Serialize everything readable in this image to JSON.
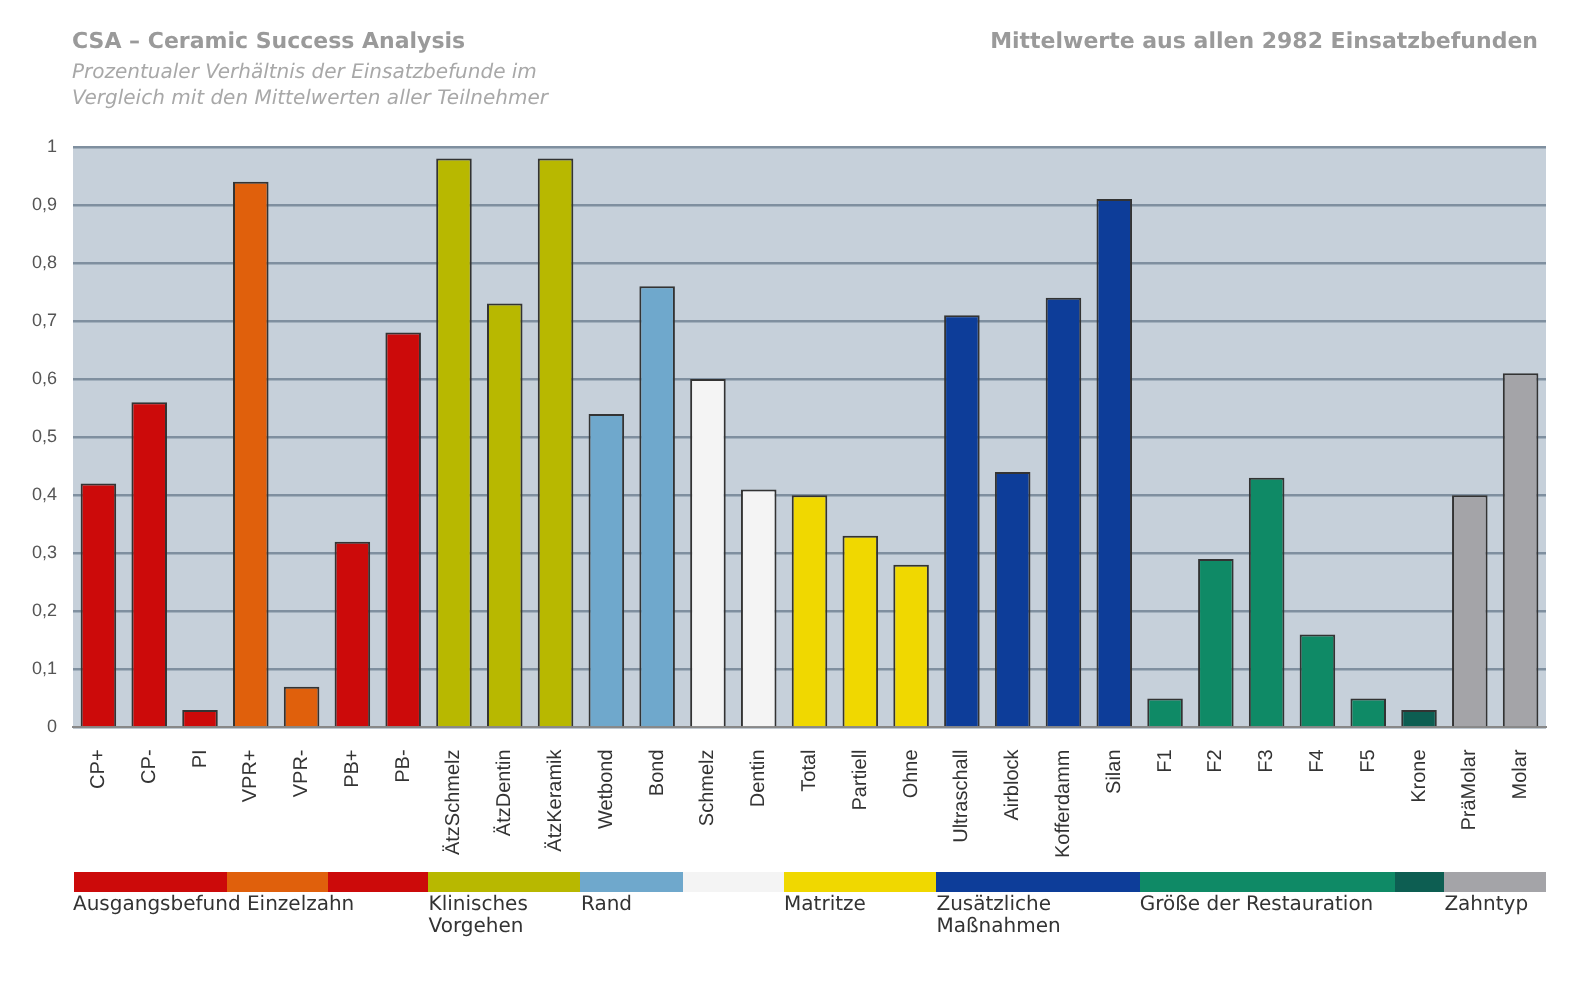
{
  "chart_data": {
    "type": "bar",
    "title": "CSA – Ceramic Success Analysis",
    "subtitle": "Prozentualer Verhältnis der Einsatzbefunde im Vergleich mit den Mittelwerten aller Teilnehmer",
    "annotations": [
      "Mittelwerte aus allen 2982 Einsatzbefunden"
    ],
    "categories": [
      "CP+",
      "CP-",
      "PI",
      "VPR+",
      "VPR-",
      "PB+",
      "PB-",
      "ÄtzSchmelz",
      "ÄtzDentin",
      "ÄtzKeramik",
      "Wetbond",
      "Bond",
      "Schmelz",
      "Dentin",
      "Total",
      "Partiell",
      "Ohne",
      "Ultraschall",
      "Airblock",
      "Kofferdamm",
      "Silan",
      "F1",
      "F2",
      "F3",
      "F4",
      "F5",
      "Krone",
      "PräMolar",
      "Molar"
    ],
    "series": [
      {
        "name": "Ausgangsbefund Einzelzahn",
        "colors": [
          "#cc0a0a",
          "#cc0a0a",
          "#cc0a0a",
          "#e0600c",
          "#e0600c",
          "#cc0a0a",
          "#cc0a0a",
          null,
          null,
          null,
          null,
          null,
          null,
          null,
          null,
          null,
          null,
          null,
          null,
          null,
          null,
          null,
          null,
          null,
          null,
          null,
          null,
          null,
          null
        ],
        "values": [
          0.42,
          0.56,
          0.03,
          0.94,
          0.07,
          0.32,
          0.68,
          null,
          null,
          null,
          null,
          null,
          null,
          null,
          null,
          null,
          null,
          null,
          null,
          null,
          null,
          null,
          null,
          null,
          null,
          null,
          null,
          null,
          null
        ]
      },
      {
        "name": "Klinisches Vorgehen",
        "colors": [
          null,
          null,
          null,
          null,
          null,
          null,
          null,
          "#b8b800",
          "#b8b800",
          "#b8b800",
          null,
          null,
          null,
          null,
          null,
          null,
          null,
          null,
          null,
          null,
          null,
          null,
          null,
          null,
          null,
          null,
          null,
          null,
          null
        ],
        "values": [
          null,
          null,
          null,
          null,
          null,
          null,
          null,
          0.98,
          0.73,
          0.98,
          null,
          null,
          null,
          null,
          null,
          null,
          null,
          null,
          null,
          null,
          null,
          null,
          null,
          null,
          null,
          null,
          null,
          null,
          null
        ]
      },
      {
        "name": "Rand",
        "colors": [
          null,
          null,
          null,
          null,
          null,
          null,
          null,
          null,
          null,
          null,
          "#6fa8cc",
          "#6fa8cc",
          "#f4f4f4",
          "#f4f4f4",
          null,
          null,
          null,
          null,
          null,
          null,
          null,
          null,
          null,
          null,
          null,
          null,
          null,
          null,
          null
        ],
        "values": [
          null,
          null,
          null,
          null,
          null,
          null,
          null,
          null,
          null,
          null,
          0.54,
          0.76,
          0.6,
          0.41,
          null,
          null,
          null,
          null,
          null,
          null,
          null,
          null,
          null,
          null,
          null,
          null,
          null,
          null,
          null
        ]
      },
      {
        "name": "Matritze",
        "colors": [
          null,
          null,
          null,
          null,
          null,
          null,
          null,
          null,
          null,
          null,
          null,
          null,
          null,
          null,
          "#f0d800",
          "#f0d800",
          "#f0d800",
          null,
          null,
          null,
          null,
          null,
          null,
          null,
          null,
          null,
          null,
          null,
          null
        ],
        "values": [
          null,
          null,
          null,
          null,
          null,
          null,
          null,
          null,
          null,
          null,
          null,
          null,
          null,
          null,
          0.4,
          0.33,
          0.28,
          null,
          null,
          null,
          null,
          null,
          null,
          null,
          null,
          null,
          null,
          null,
          null
        ]
      },
      {
        "name": "Zusätzliche Maßnahmen",
        "colors": [
          null,
          null,
          null,
          null,
          null,
          null,
          null,
          null,
          null,
          null,
          null,
          null,
          null,
          null,
          null,
          null,
          null,
          "#0d3d99",
          "#0d3d99",
          "#0d3d99",
          "#0d3d99",
          null,
          null,
          null,
          null,
          null,
          null,
          null,
          null
        ],
        "values": [
          null,
          null,
          null,
          null,
          null,
          null,
          null,
          null,
          null,
          null,
          null,
          null,
          null,
          null,
          null,
          null,
          null,
          0.71,
          0.44,
          0.74,
          0.91,
          null,
          null,
          null,
          null,
          null,
          null,
          null,
          null
        ]
      },
      {
        "name": "Größe der Restauration",
        "colors": [
          null,
          null,
          null,
          null,
          null,
          null,
          null,
          null,
          null,
          null,
          null,
          null,
          null,
          null,
          null,
          null,
          null,
          null,
          null,
          null,
          null,
          "#0f8a66",
          "#0f8a66",
          "#0f8a66",
          "#0f8a66",
          "#0f8a66",
          "#0d5e52",
          null,
          null
        ],
        "values": [
          null,
          null,
          null,
          null,
          null,
          null,
          null,
          null,
          null,
          null,
          null,
          null,
          null,
          null,
          null,
          null,
          null,
          null,
          null,
          null,
          null,
          0.05,
          0.29,
          0.43,
          0.16,
          0.05,
          0.03,
          null,
          null
        ]
      },
      {
        "name": "Zahntyp",
        "colors": [
          null,
          null,
          null,
          null,
          null,
          null,
          null,
          null,
          null,
          null,
          null,
          null,
          null,
          null,
          null,
          null,
          null,
          null,
          null,
          null,
          null,
          null,
          null,
          null,
          null,
          null,
          null,
          "#a4a4a8",
          "#a4a4a8"
        ],
        "values": [
          null,
          null,
          null,
          null,
          null,
          null,
          null,
          null,
          null,
          null,
          null,
          null,
          null,
          null,
          null,
          null,
          null,
          null,
          null,
          null,
          null,
          null,
          null,
          null,
          null,
          null,
          null,
          0.4,
          0.61
        ]
      }
    ],
    "ylim": [
      0,
      1
    ],
    "yticks": [
      0,
      {
        "value": 0.1,
        "label": "0,1"
      },
      {
        "value": 0.2,
        "label": "0,2"
      },
      {
        "value": 0.3,
        "label": "0,3"
      },
      {
        "value": 0.4,
        "label": "0,4"
      },
      {
        "value": 0.5,
        "label": "0,5"
      },
      {
        "value": 0.6,
        "label": "0,6"
      },
      {
        "value": 0.7,
        "label": "0,7"
      },
      {
        "value": 0.8,
        "label": "0,8"
      },
      {
        "value": 0.9,
        "label": "0,9"
      },
      1
    ],
    "grid": "y",
    "legend": "bottom"
  }
}
